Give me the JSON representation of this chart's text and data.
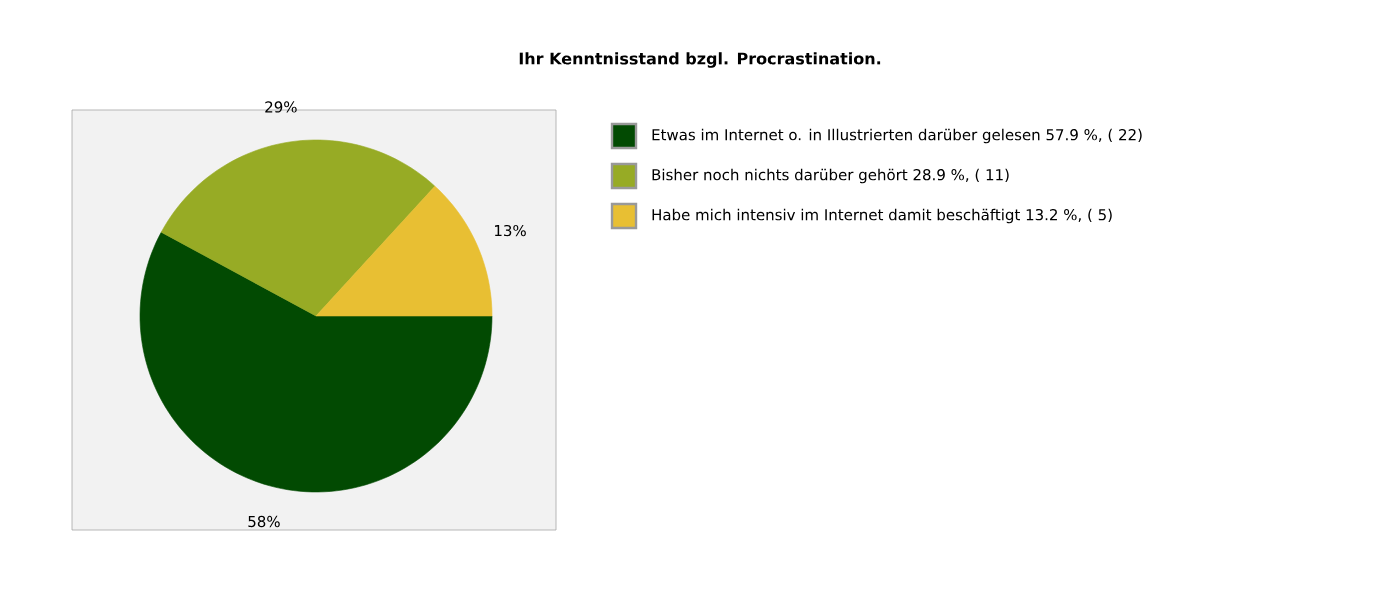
{
  "chart_data": {
    "type": "pie",
    "title": "Ihr Kenntnisstand bzgl. Procrastination.",
    "categories": [
      "Etwas im Internet o. in Illustrierten darüber gelesen  57.9 %, ( 22)",
      "Bisher noch nichts darüber gehört  28.9 %, ( 11)",
      "Habe mich intensiv im Internet damit beschäftigt  13.2 %, ( 5)"
    ],
    "values": [
      57.9,
      28.9,
      13.2
    ],
    "value_labels": [
      "58%",
      "29%",
      "13%"
    ],
    "colors": [
      "#024a02",
      "#97ab25",
      "#e8bf33"
    ],
    "legend": "right"
  }
}
